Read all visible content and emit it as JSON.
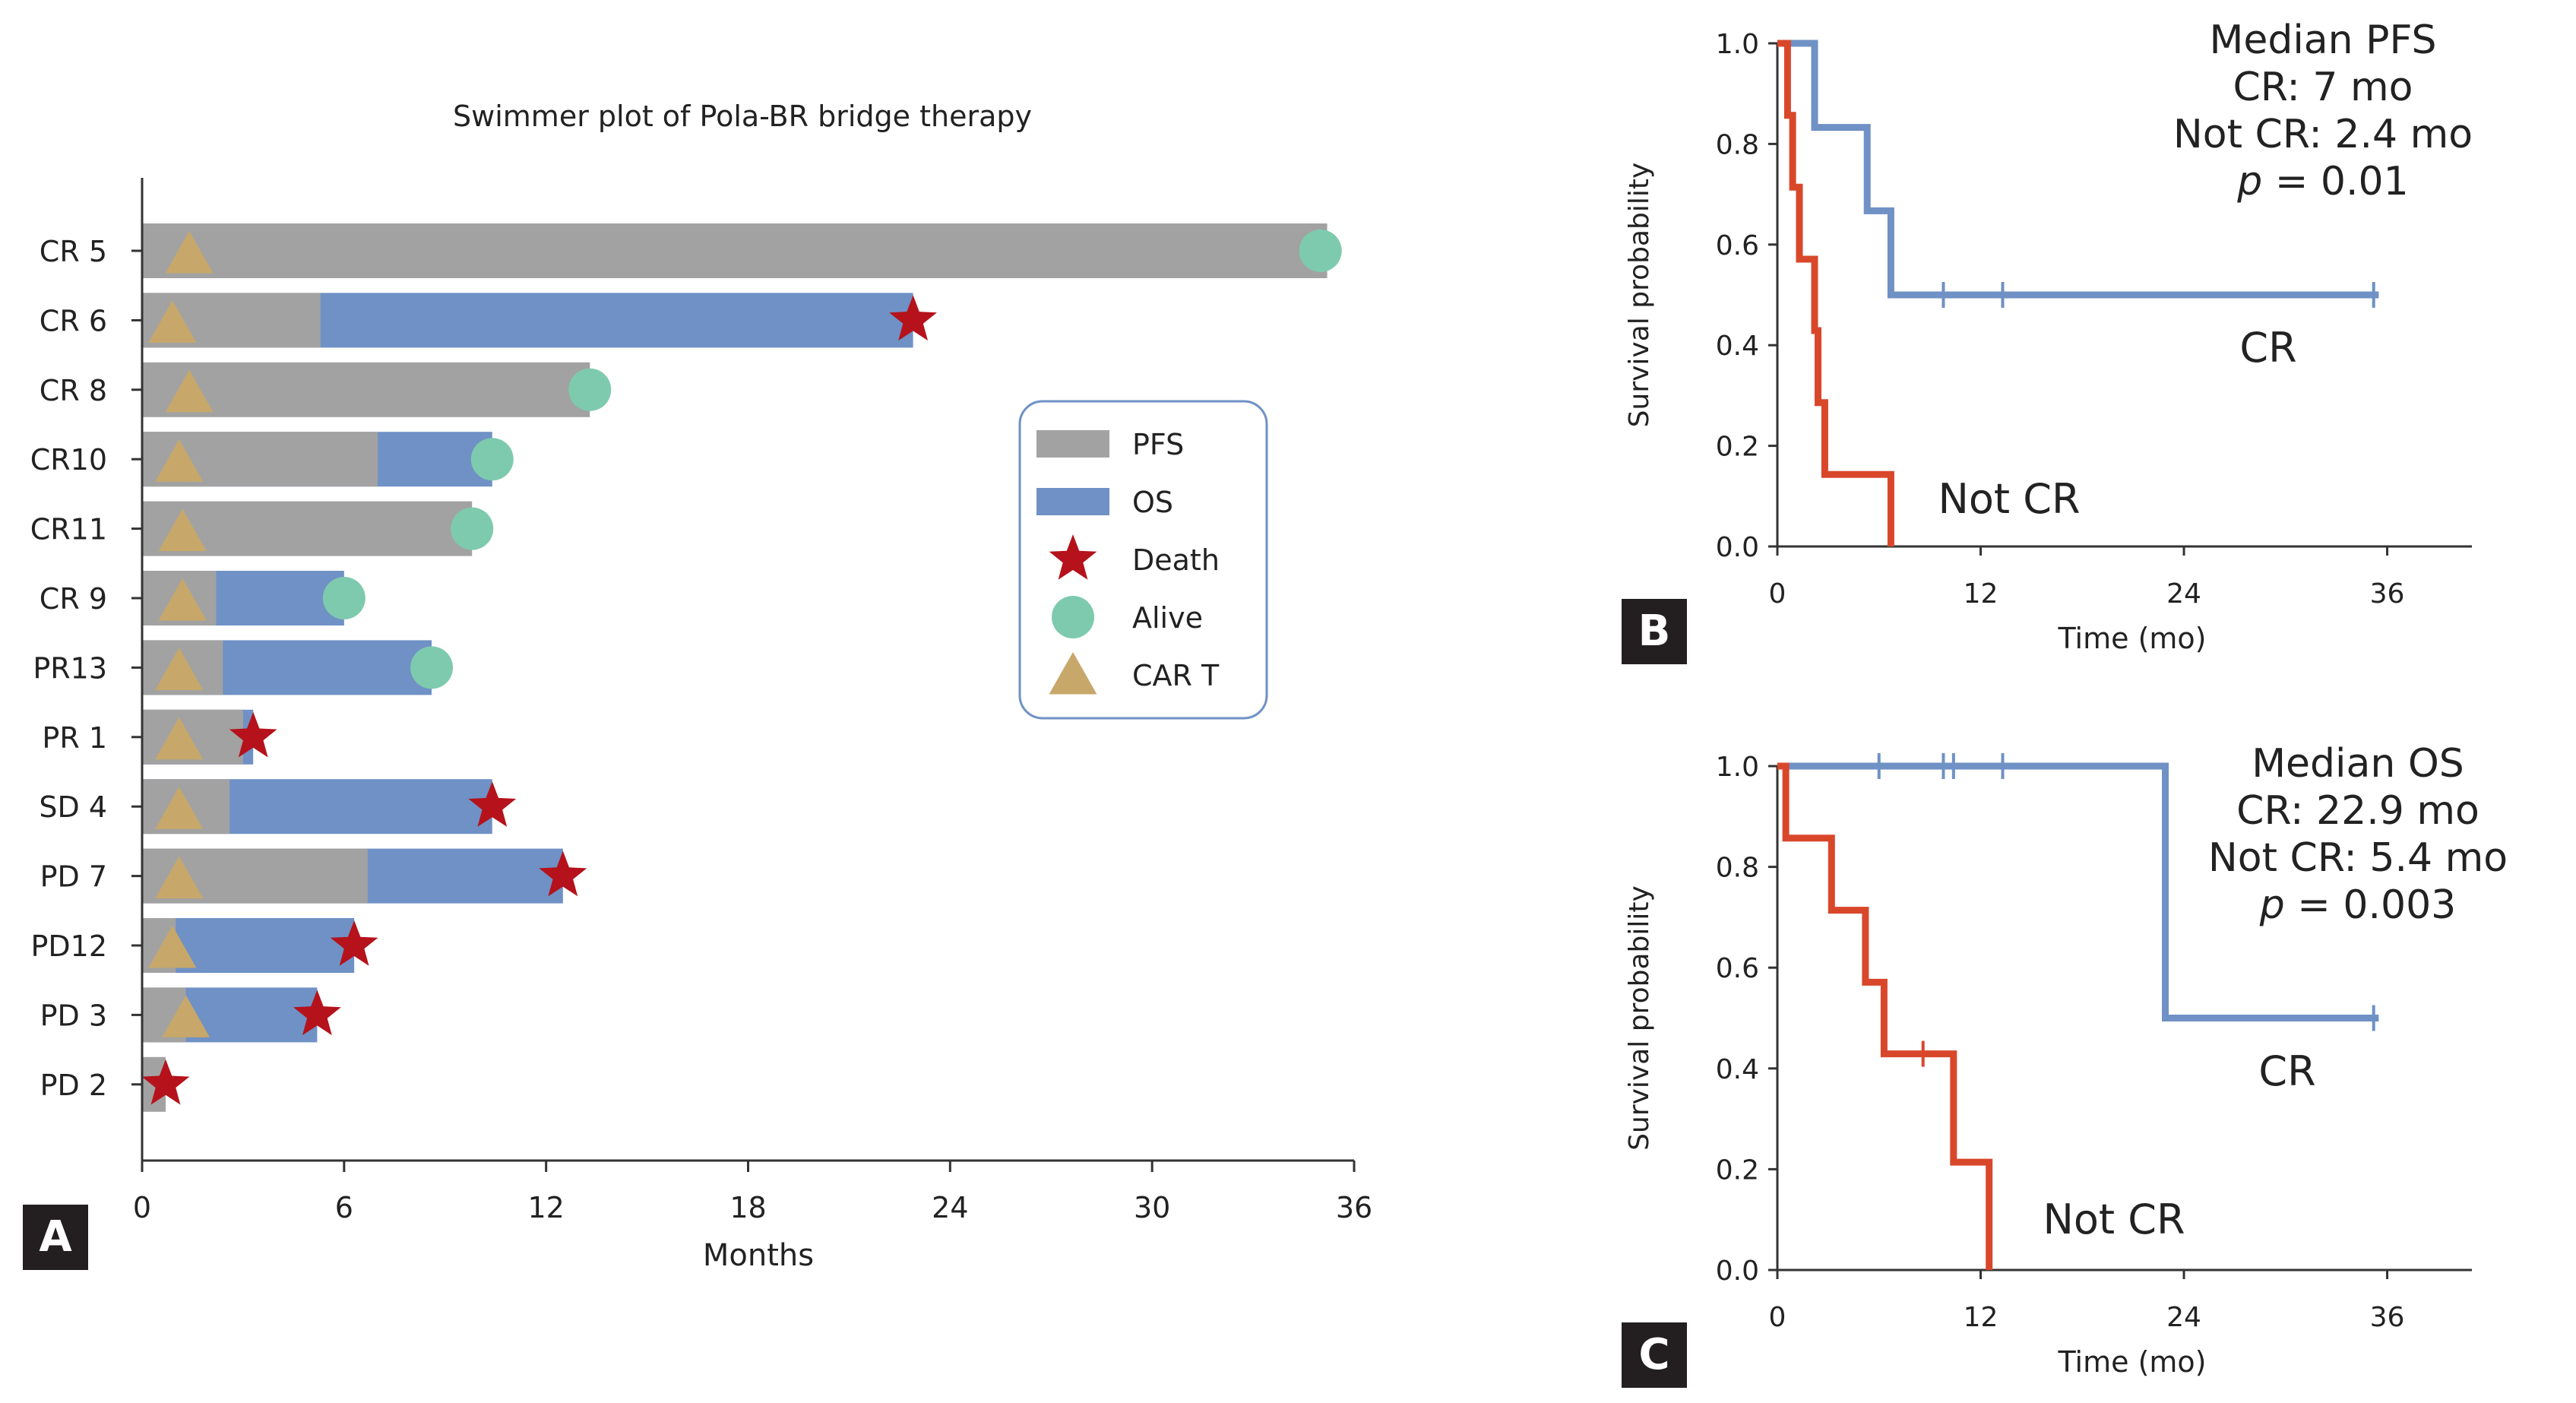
{
  "panels": {
    "a_letter": "A",
    "b_letter": "B",
    "c_letter": "C"
  },
  "colors": {
    "pfs": "#a2a2a2",
    "os": "#6f91c5",
    "death": "#b5121b",
    "alive": "#7ecaae",
    "cart": "#c7a86a",
    "cr_curve": "#6f91c5",
    "notcr_curve": "#d9472b",
    "legend_border": "#6f91c5"
  },
  "chart_data": [
    {
      "type": "bar",
      "id": "swimmer",
      "title": "Swimmer plot of Pola-BR bridge therapy",
      "xlabel": "Months",
      "ylabel": "",
      "xlim": [
        0,
        36
      ],
      "xticks": [
        "0",
        "6",
        "12",
        "18",
        "24",
        "30",
        "36"
      ],
      "legend": {
        "placement": "right",
        "items": [
          {
            "label": "PFS",
            "marker": "pfs"
          },
          {
            "label": "OS",
            "marker": "os"
          },
          {
            "label": "Death",
            "marker": "death"
          },
          {
            "label": "Alive",
            "marker": "alive"
          },
          {
            "label": "CAR T",
            "marker": "cart"
          }
        ]
      },
      "patients": [
        {
          "label": "CR 5",
          "pfs": 35.2,
          "os": 35.2,
          "status": "alive",
          "end": 35.0,
          "car_t": 1.4
        },
        {
          "label": "CR 6",
          "pfs": 5.3,
          "os": 22.9,
          "status": "death",
          "end": 22.9,
          "car_t": 0.9
        },
        {
          "label": "CR 8",
          "pfs": 13.3,
          "os": 13.3,
          "status": "alive",
          "end": 13.3,
          "car_t": 1.4
        },
        {
          "label": "CR10",
          "pfs": 7.0,
          "os": 10.4,
          "status": "alive",
          "end": 10.4,
          "car_t": 1.1
        },
        {
          "label": "CR11",
          "pfs": 9.8,
          "os": 9.8,
          "status": "alive",
          "end": 9.8,
          "car_t": 1.2
        },
        {
          "label": "CR 9",
          "pfs": 2.2,
          "os": 6.0,
          "status": "alive",
          "end": 6.0,
          "car_t": 1.2
        },
        {
          "label": "PR13",
          "pfs": 2.4,
          "os": 8.6,
          "status": "alive",
          "end": 8.6,
          "car_t": 1.1
        },
        {
          "label": "PR 1",
          "pfs": 3.0,
          "os": 3.3,
          "status": "death",
          "end": 3.3,
          "car_t": 1.1
        },
        {
          "label": "SD 4",
          "pfs": 2.6,
          "os": 10.4,
          "status": "death",
          "end": 10.4,
          "car_t": 1.1
        },
        {
          "label": "PD 7",
          "pfs": 6.7,
          "os": 12.5,
          "status": "death",
          "end": 12.5,
          "car_t": 1.1
        },
        {
          "label": "PD12",
          "pfs": 1.0,
          "os": 6.3,
          "status": "death",
          "end": 6.3,
          "car_t": 0.9
        },
        {
          "label": "PD 3",
          "pfs": 1.3,
          "os": 5.2,
          "status": "death",
          "end": 5.2,
          "car_t": 1.3
        },
        {
          "label": "PD 2",
          "pfs": 0.7,
          "os": 0.7,
          "status": "death",
          "end": 0.7,
          "car_t": null
        }
      ]
    },
    {
      "type": "line",
      "id": "pfs_km",
      "title": "",
      "xlabel": "Time (mo)",
      "ylabel": "Survival probability",
      "xlim": [
        0,
        41
      ],
      "ylim": [
        0,
        1
      ],
      "xticks": [
        "0",
        "12",
        "24",
        "36"
      ],
      "yticks": [
        "0.0",
        "0.2",
        "0.4",
        "0.6",
        "0.8",
        "1.0"
      ],
      "annotation": [
        "Median PFS",
        "CR: 7 mo",
        "Not CR: 2.4 mo",
        "= 0.01"
      ],
      "p_symbol": "p",
      "series": [
        {
          "name": "CR",
          "color": "cr_curve",
          "steps": [
            [
              0,
              1.0
            ],
            [
              2.2,
              1.0
            ],
            [
              2.2,
              0.833
            ],
            [
              5.3,
              0.833
            ],
            [
              5.3,
              0.667
            ],
            [
              6.7,
              0.667
            ],
            [
              6.7,
              0.5
            ],
            [
              35.5,
              0.5
            ]
          ],
          "censor": [
            [
              9.8,
              0.5
            ],
            [
              13.3,
              0.5
            ],
            [
              35.2,
              0.5
            ]
          ]
        },
        {
          "name": "Not CR",
          "color": "notcr_curve",
          "steps": [
            [
              0,
              1.0
            ],
            [
              0.6,
              1.0
            ],
            [
              0.6,
              0.857
            ],
            [
              0.9,
              0.857
            ],
            [
              0.9,
              0.714
            ],
            [
              1.3,
              0.714
            ],
            [
              1.3,
              0.571
            ],
            [
              2.2,
              0.571
            ],
            [
              2.2,
              0.429
            ],
            [
              2.4,
              0.429
            ],
            [
              2.4,
              0.286
            ],
            [
              2.8,
              0.286
            ],
            [
              2.8,
              0.143
            ],
            [
              6.7,
              0.143
            ],
            [
              6.7,
              0.0
            ]
          ],
          "censor": []
        }
      ]
    },
    {
      "type": "line",
      "id": "os_km",
      "title": "",
      "xlabel": "Time (mo)",
      "ylabel": "Survival probability",
      "xlim": [
        0,
        41
      ],
      "ylim": [
        0,
        1
      ],
      "xticks": [
        "0",
        "12",
        "24",
        "36"
      ],
      "yticks": [
        "0.0",
        "0.2",
        "0.4",
        "0.6",
        "0.8",
        "1.0"
      ],
      "annotation": [
        "Median OS",
        "CR: 22.9 mo",
        "Not CR: 5.4 mo",
        "= 0.003"
      ],
      "p_symbol": "p",
      "series": [
        {
          "name": "CR",
          "color": "cr_curve",
          "steps": [
            [
              0,
              1.0
            ],
            [
              22.9,
              1.0
            ],
            [
              22.9,
              0.5
            ],
            [
              35.5,
              0.5
            ]
          ],
          "censor": [
            [
              6.0,
              1.0
            ],
            [
              9.8,
              1.0
            ],
            [
              10.4,
              1.0
            ],
            [
              13.3,
              1.0
            ],
            [
              35.2,
              0.5
            ]
          ]
        },
        {
          "name": "Not CR",
          "color": "notcr_curve",
          "steps": [
            [
              0,
              1.0
            ],
            [
              0.5,
              1.0
            ],
            [
              0.5,
              0.857
            ],
            [
              3.2,
              0.857
            ],
            [
              3.2,
              0.714
            ],
            [
              5.2,
              0.714
            ],
            [
              5.2,
              0.571
            ],
            [
              6.3,
              0.571
            ],
            [
              6.3,
              0.429
            ],
            [
              10.4,
              0.429
            ],
            [
              10.4,
              0.214
            ],
            [
              12.5,
              0.214
            ],
            [
              12.5,
              0.0
            ]
          ],
          "censor": [
            [
              8.6,
              0.429
            ]
          ]
        }
      ]
    }
  ]
}
